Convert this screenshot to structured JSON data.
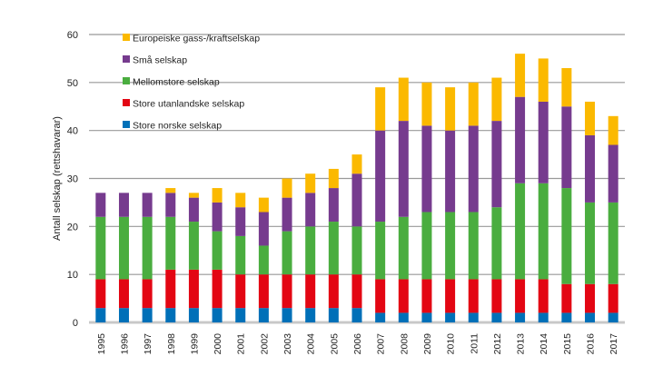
{
  "chart_data": {
    "type": "bar",
    "stacked": true,
    "ylabel": "Antall selskap (rettshavarar)",
    "xlabel": "",
    "ylim": [
      0,
      60
    ],
    "yticks": [
      0,
      10,
      20,
      30,
      40,
      50,
      60
    ],
    "grid": true,
    "legend_placement": "top-left",
    "categories": [
      "1995",
      "1996",
      "1997",
      "1998",
      "1999",
      "2000",
      "2001",
      "2002",
      "2003",
      "2004",
      "2005",
      "2006",
      "2007",
      "2008",
      "2009",
      "2010",
      "2011",
      "2012",
      "2013",
      "2014",
      "2015",
      "2016",
      "2017"
    ],
    "series": [
      {
        "name": "Store norske selskap",
        "color": "#0070b8",
        "values": [
          3,
          3,
          3,
          3,
          3,
          3,
          3,
          3,
          3,
          3,
          3,
          3,
          2,
          2,
          2,
          2,
          2,
          2,
          2,
          2,
          2,
          2,
          2
        ]
      },
      {
        "name": "Store utanlandske selskap",
        "color": "#e30613",
        "values": [
          6,
          6,
          6,
          8,
          8,
          8,
          7,
          7,
          7,
          7,
          7,
          7,
          7,
          7,
          7,
          7,
          7,
          7,
          7,
          7,
          6,
          6,
          6
        ]
      },
      {
        "name": "Mellomstore selskap",
        "color": "#4aad3f",
        "values": [
          13,
          13,
          13,
          11,
          10,
          8,
          8,
          6,
          9,
          10,
          11,
          10,
          12,
          13,
          14,
          14,
          14,
          15,
          20,
          20,
          20,
          17,
          17
        ]
      },
      {
        "name": "Små selskap",
        "color": "#763b8e",
        "values": [
          5,
          5,
          5,
          5,
          5,
          6,
          6,
          7,
          7,
          7,
          7,
          11,
          19,
          20,
          18,
          17,
          18,
          18,
          18,
          17,
          17,
          14,
          12
        ]
      },
      {
        "name": "Europeiske gass-/kraftselskap",
        "color": "#fbb900",
        "values": [
          0,
          0,
          0,
          1,
          1,
          3,
          3,
          3,
          4,
          4,
          4,
          4,
          9,
          9,
          9,
          9,
          9,
          9,
          9,
          9,
          8,
          7,
          6
        ]
      }
    ]
  }
}
